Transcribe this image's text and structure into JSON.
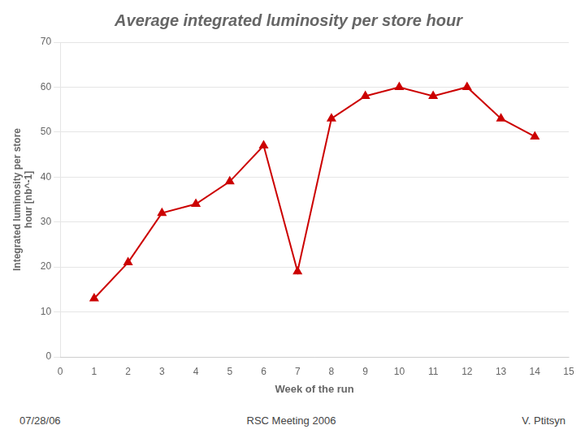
{
  "chart_data": {
    "type": "line",
    "title": "Average integrated luminosity per store hour",
    "xlabel": "Week of the run",
    "ylabel": "Integrated luminosity per store\nhour [nb^-1]",
    "annotations": [
      "07/28/06",
      "RSC Meeting 2006",
      "V. Ptitsyn"
    ],
    "x": [
      1,
      2,
      3,
      4,
      5,
      6,
      7,
      8,
      9,
      10,
      11,
      12,
      13,
      14
    ],
    "values": [
      13,
      21,
      32,
      34,
      39,
      47,
      19,
      53,
      58,
      60,
      58,
      60,
      53,
      49
    ],
    "color": "#cc0000",
    "marker": "triangle",
    "xlim": [
      0,
      15
    ],
    "ylim": [
      0,
      70
    ],
    "xticks": [
      0,
      1,
      2,
      3,
      4,
      5,
      6,
      7,
      8,
      9,
      10,
      11,
      12,
      13,
      14,
      15
    ],
    "yticks": [
      0,
      10,
      20,
      30,
      40,
      50,
      60,
      70
    ],
    "grid": "y"
  }
}
